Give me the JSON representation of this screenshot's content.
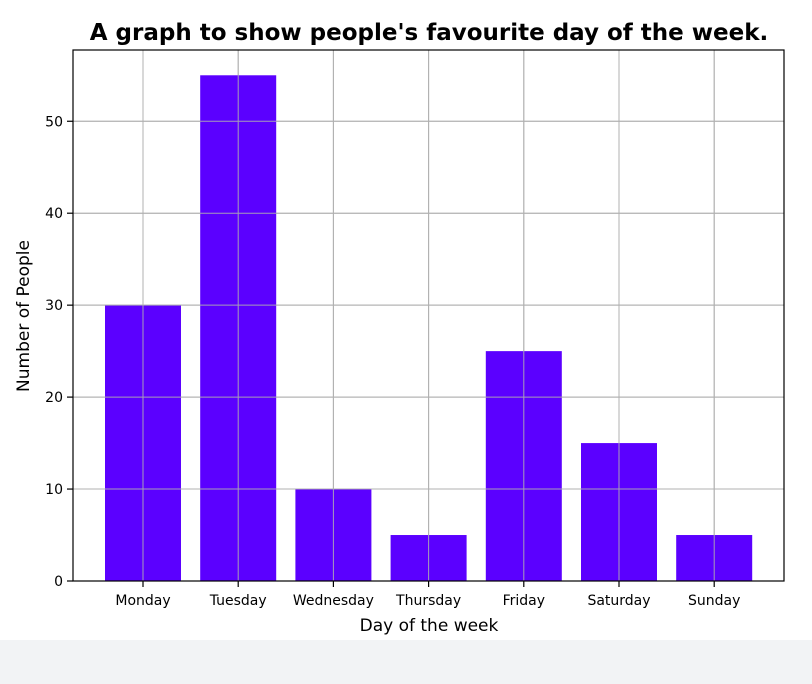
{
  "chart_data": {
    "type": "bar",
    "title": "A graph to show people's favourite day of the week.",
    "xlabel": "Day of the week",
    "ylabel": "Number of People",
    "categories": [
      "Monday",
      "Tuesday",
      "Wednesday",
      "Thursday",
      "Friday",
      "Saturday",
      "Sunday"
    ],
    "values": [
      30,
      55,
      10,
      5,
      25,
      15,
      5
    ],
    "ylim": [
      0,
      57.75
    ],
    "yticks": [
      0,
      10,
      20,
      30,
      40,
      50
    ],
    "grid": true,
    "bar_color": "#5B00FF",
    "grid_color": "#b0b0b0"
  }
}
